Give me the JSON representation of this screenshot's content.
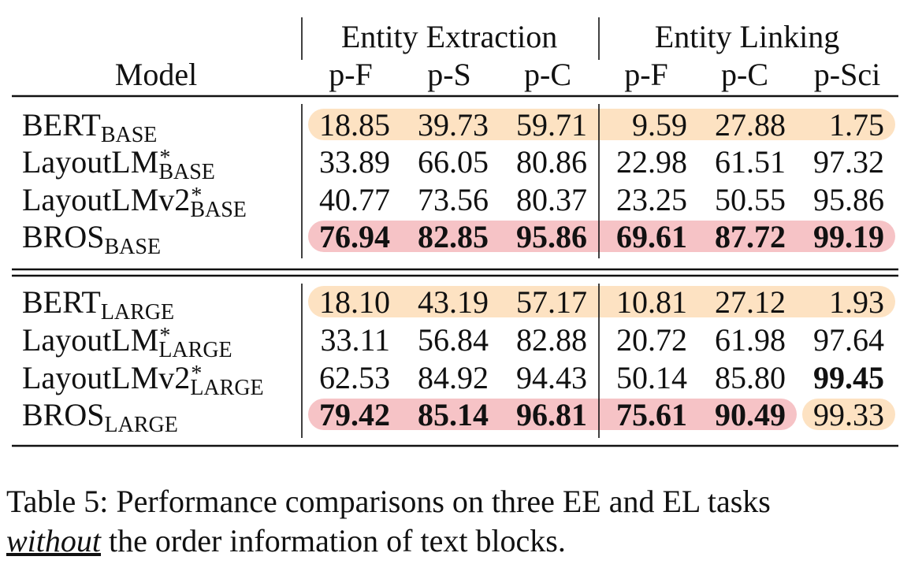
{
  "table": {
    "model_header": "Model",
    "groups": [
      "Entity Extraction",
      "Entity Linking"
    ],
    "columns": [
      "p-F",
      "p-S",
      "p-C",
      "p-F",
      "p-C",
      "p-Sci"
    ],
    "highlight_colors": {
      "orange": "#fde2c2",
      "pink": "#f6c3c6"
    },
    "blocks": [
      [
        {
          "model": {
            "name": "BERT",
            "sub": "BASE"
          },
          "cells": [
            {
              "text": "18.85",
              "bold": false,
              "hl": "orange"
            },
            {
              "text": "39.73",
              "bold": false,
              "hl": "orange"
            },
            {
              "text": "59.71",
              "bold": false,
              "hl": "orange"
            },
            {
              "text": "9.59",
              "bold": false,
              "hl": "orange"
            },
            {
              "text": "27.88",
              "bold": false,
              "hl": "orange"
            },
            {
              "text": "1.75",
              "bold": false,
              "hl": "orange"
            }
          ]
        },
        {
          "model": {
            "name": "LayoutLM",
            "sup": "*",
            "sub": "BASE"
          },
          "cells": [
            {
              "text": "33.89",
              "bold": false,
              "hl": null
            },
            {
              "text": "66.05",
              "bold": false,
              "hl": null
            },
            {
              "text": "80.86",
              "bold": false,
              "hl": null
            },
            {
              "text": "22.98",
              "bold": false,
              "hl": null
            },
            {
              "text": "61.51",
              "bold": false,
              "hl": null
            },
            {
              "text": "97.32",
              "bold": false,
              "hl": null
            }
          ]
        },
        {
          "model": {
            "name": "LayoutLMv2",
            "sup": "*",
            "sub": "BASE"
          },
          "cells": [
            {
              "text": "40.77",
              "bold": false,
              "hl": null
            },
            {
              "text": "73.56",
              "bold": false,
              "hl": null
            },
            {
              "text": "80.37",
              "bold": false,
              "hl": null
            },
            {
              "text": "23.25",
              "bold": false,
              "hl": null
            },
            {
              "text": "50.55",
              "bold": false,
              "hl": null
            },
            {
              "text": "95.86",
              "bold": false,
              "hl": null
            }
          ]
        },
        {
          "model": {
            "name": "BROS",
            "sub": "BASE"
          },
          "cells": [
            {
              "text": "76.94",
              "bold": true,
              "hl": "pink"
            },
            {
              "text": "82.85",
              "bold": true,
              "hl": "pink"
            },
            {
              "text": "95.86",
              "bold": true,
              "hl": "pink"
            },
            {
              "text": "69.61",
              "bold": true,
              "hl": "pink"
            },
            {
              "text": "87.72",
              "bold": true,
              "hl": "pink"
            },
            {
              "text": "99.19",
              "bold": true,
              "hl": "pink"
            }
          ]
        }
      ],
      [
        {
          "model": {
            "name": "BERT",
            "sub": "LARGE"
          },
          "cells": [
            {
              "text": "18.10",
              "bold": false,
              "hl": "orange"
            },
            {
              "text": "43.19",
              "bold": false,
              "hl": "orange"
            },
            {
              "text": "57.17",
              "bold": false,
              "hl": "orange"
            },
            {
              "text": "10.81",
              "bold": false,
              "hl": "orange"
            },
            {
              "text": "27.12",
              "bold": false,
              "hl": "orange"
            },
            {
              "text": "1.93",
              "bold": false,
              "hl": "orange"
            }
          ]
        },
        {
          "model": {
            "name": "LayoutLM",
            "sup": "*",
            "sub": "LARGE"
          },
          "cells": [
            {
              "text": "33.11",
              "bold": false,
              "hl": null
            },
            {
              "text": "56.84",
              "bold": false,
              "hl": null
            },
            {
              "text": "82.88",
              "bold": false,
              "hl": null
            },
            {
              "text": "20.72",
              "bold": false,
              "hl": null
            },
            {
              "text": "61.98",
              "bold": false,
              "hl": null
            },
            {
              "text": "97.64",
              "bold": false,
              "hl": null
            }
          ]
        },
        {
          "model": {
            "name": "LayoutLMv2",
            "sup": "*",
            "sub": "LARGE"
          },
          "cells": [
            {
              "text": "62.53",
              "bold": false,
              "hl": null
            },
            {
              "text": "84.92",
              "bold": false,
              "hl": null
            },
            {
              "text": "94.43",
              "bold": false,
              "hl": null
            },
            {
              "text": "50.14",
              "bold": false,
              "hl": null
            },
            {
              "text": "85.80",
              "bold": false,
              "hl": null
            },
            {
              "text": "99.45",
              "bold": true,
              "hl": null
            }
          ]
        },
        {
          "model": {
            "name": "BROS",
            "sub": "LARGE"
          },
          "cells": [
            {
              "text": "79.42",
              "bold": true,
              "hl": "pink"
            },
            {
              "text": "85.14",
              "bold": true,
              "hl": "pink"
            },
            {
              "text": "96.81",
              "bold": true,
              "hl": "pink"
            },
            {
              "text": "75.61",
              "bold": true,
              "hl": "pink"
            },
            {
              "text": "90.49",
              "bold": true,
              "hl": "pink"
            },
            {
              "text": "99.33",
              "bold": false,
              "hl": "orange"
            }
          ]
        }
      ]
    ]
  },
  "caption": {
    "lines": [
      [
        {
          "text": "Table 5: Performance comparisons on three EE and EL tasks",
          "emph": false
        }
      ],
      [
        {
          "text": "without",
          "emph": true
        },
        {
          "text": " the order information of text blocks.",
          "emph": false
        }
      ]
    ]
  }
}
